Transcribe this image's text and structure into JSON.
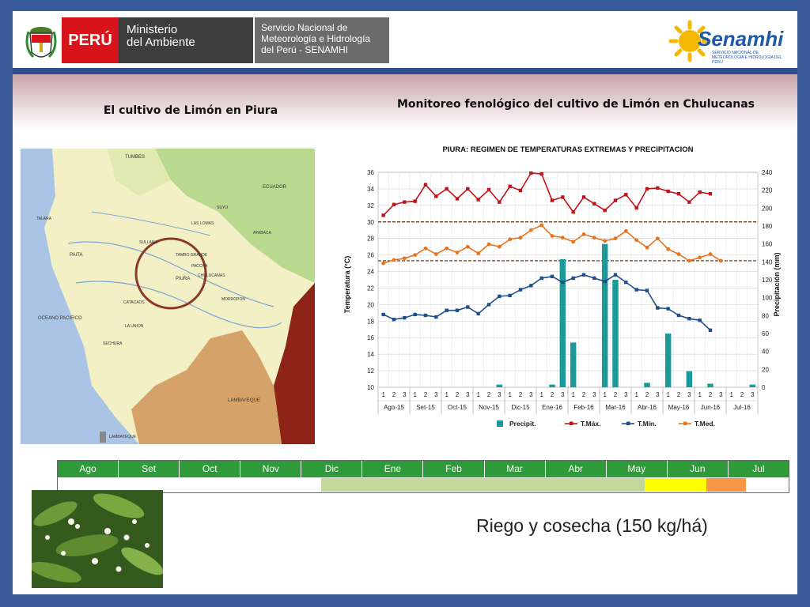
{
  "header": {
    "peru": "PERÚ",
    "ministerio_line1": "Ministerio",
    "ministerio_line2": "del Ambiente",
    "senamhi_line1": "Servicio Nacional de",
    "senamhi_line2": "Meteorología e Hidrología",
    "senamhi_line3": "del Perú - SENAMHI",
    "logo_name": "Senamhi",
    "logo_sub": "SERVICIO NACIONAL DE METEOROLOGÍA E HIDROLOGÍA DEL PERÚ"
  },
  "title_left": "El cultivo de Limón en Piura",
  "title_right": "Monitoreo fenológico del cultivo de Limón en Chulucanas",
  "map": {
    "labels": {
      "tumbes": "TUMBES",
      "ecuador": "ECUADOR",
      "piura": "PIURA",
      "lambayeque": "LAMBAYEQUE",
      "oceano": "OCEANO PACIFICO",
      "lambayeque_coast": "LAMBAYEQUE",
      "talara": "TALARA",
      "paita": "PAITA",
      "sechura": "SECHURA",
      "tambo_grande": "TAMBO GRANDE",
      "chulucanas": "CHULUCANAS",
      "ayabaca": "AYABACA",
      "morropon": "MORROPON",
      "sullana": "SULLANA",
      "las_lomas": "LAS LOMAS",
      "catacaos": "CATACAOS",
      "la_union": "LA UNION",
      "suyo": "SUYO",
      "pacaipampa": "PACCHA"
    }
  },
  "chart_data": {
    "type": "line",
    "title": "PIURA: REGIMEN DE TEMPERATURAS EXTREMAS Y PRECIPITACION",
    "ylabel": "Temperatura (°C)",
    "y2label": "Precipitación (mm)",
    "ylim": [
      10,
      36
    ],
    "y2lim": [
      0,
      240
    ],
    "yticks": [
      10,
      12,
      14,
      16,
      18,
      20,
      22,
      24,
      26,
      28,
      30,
      32,
      34,
      36
    ],
    "y2ticks": [
      0,
      20,
      40,
      60,
      80,
      100,
      120,
      140,
      160,
      180,
      200,
      220,
      240
    ],
    "x_decades": [
      "1",
      "2",
      "3",
      "1",
      "2",
      "3",
      "1",
      "2",
      "3",
      "1",
      "2",
      "3",
      "1",
      "2",
      "3",
      "1",
      "2",
      "3",
      "1",
      "2",
      "3",
      "1",
      "2",
      "3",
      "1",
      "2",
      "3",
      "1",
      "2",
      "3",
      "1",
      "2",
      "3",
      "1",
      "2",
      "3"
    ],
    "months": [
      "Ago-15",
      "Set-15",
      "Oct-15",
      "Nov-15",
      "Dic-15",
      "Ene-16",
      "Feb-16",
      "Mar-16",
      "Abr-16",
      "May-16",
      "Jun-16",
      "Jul-16"
    ],
    "reference_lines": [
      30,
      25.3
    ],
    "series": [
      {
        "name": "T.Máx.",
        "color": "#c0141c",
        "axis": "left",
        "values": [
          30.8,
          32.1,
          32.4,
          32.5,
          34.5,
          33.1,
          34.0,
          32.8,
          34.0,
          32.7,
          33.9,
          32.4,
          34.3,
          33.8,
          35.9,
          35.8,
          32.6,
          33.0,
          31.2,
          33.0,
          32.2,
          31.4,
          32.6,
          33.3,
          31.7,
          34.0,
          34.1,
          33.7,
          33.4,
          32.4,
          33.6,
          33.4,
          null,
          null,
          null,
          null
        ]
      },
      {
        "name": "T.Mín.",
        "color": "#1f4e8c",
        "axis": "left",
        "values": [
          18.8,
          18.2,
          18.4,
          18.8,
          18.7,
          18.5,
          19.3,
          19.3,
          19.7,
          18.9,
          20.0,
          21.0,
          21.1,
          21.8,
          22.3,
          23.2,
          23.4,
          22.7,
          23.2,
          23.6,
          23.2,
          22.8,
          23.6,
          22.7,
          21.8,
          21.7,
          19.6,
          19.5,
          18.7,
          18.3,
          18.1,
          16.9,
          null,
          null,
          null,
          null
        ]
      },
      {
        "name": "T.Med.",
        "color": "#e8741e",
        "axis": "left",
        "values": [
          25.0,
          25.4,
          25.6,
          26.0,
          26.8,
          26.1,
          26.8,
          26.3,
          27.0,
          26.2,
          27.3,
          27.0,
          27.9,
          28.1,
          29.0,
          29.6,
          28.3,
          28.1,
          27.6,
          28.5,
          28.1,
          27.7,
          28.0,
          28.9,
          27.8,
          26.9,
          28.0,
          26.7,
          26.1,
          25.3,
          25.7,
          26.1,
          25.3,
          null,
          null,
          null
        ]
      },
      {
        "name": "Precipit.",
        "color": "#1a9a9a",
        "axis": "right",
        "type": "bar",
        "values": [
          0,
          0,
          0,
          0,
          0,
          0,
          0,
          0,
          0,
          0,
          0,
          3,
          0,
          0,
          0,
          0,
          3,
          143,
          50,
          0,
          0,
          160,
          120,
          0,
          0,
          5,
          0,
          60,
          0,
          18,
          0,
          4,
          0,
          0,
          0,
          3
        ]
      }
    ],
    "legend": [
      "Precipit.",
      "T.Máx.",
      "T.Mín.",
      "T.Med."
    ],
    "legend_position": "bottom"
  },
  "calendar": {
    "months": [
      "Ago",
      "Set",
      "Oct",
      "Nov",
      "Dic",
      "Ene",
      "Feb",
      "Mar",
      "Abr",
      "May",
      "Jun",
      "Jul"
    ],
    "colors": {
      "header": "#2f9a3a",
      "vegetative": "#c4d79b",
      "flowering": "#ffff00",
      "harvest": "#f79646"
    }
  },
  "caption": "Riego y cosecha (150 kg/há)"
}
